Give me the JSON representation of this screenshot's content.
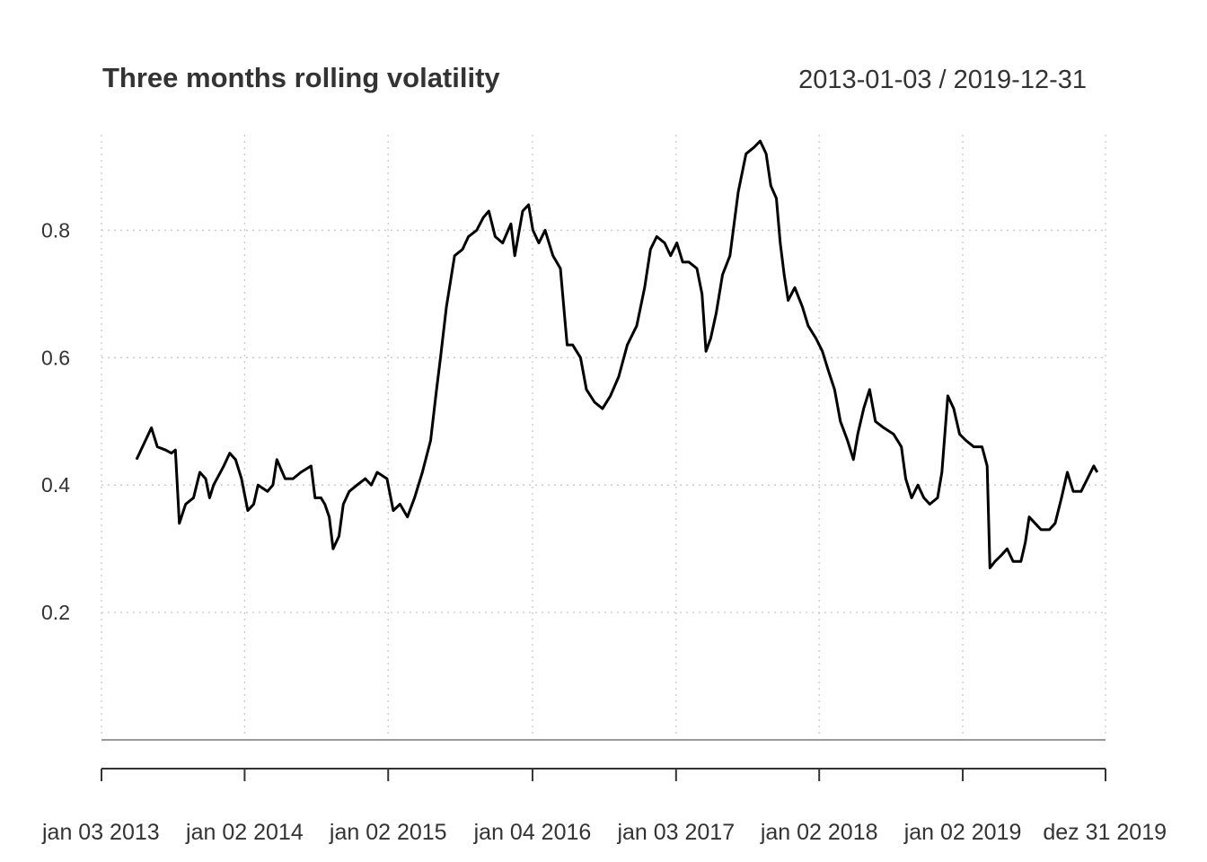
{
  "chart_data": {
    "type": "line",
    "title": "Three months rolling volatility",
    "date_range": "2013-01-03 / 2019-12-31",
    "x_range": [
      "2013-01-03",
      "2019-12-31"
    ],
    "ylim": [
      0,
      0.95
    ],
    "y_ticks": [
      "0.2",
      "0.4",
      "0.6",
      "0.8"
    ],
    "x_tick_labels": [
      "jan 03 2013",
      "jan 02 2014",
      "jan 02 2015",
      "jan 04 2016",
      "jan 03 2017",
      "jan 02 2018",
      "jan 02 2019",
      "dez 31 2019"
    ],
    "x_tick_dates": [
      "2013-01-03",
      "2014-01-02",
      "2015-01-02",
      "2016-01-04",
      "2017-01-03",
      "2018-01-02",
      "2019-01-02",
      "2019-12-31"
    ],
    "grid": true,
    "series": [
      {
        "values": [
          [
            "2013-04-02",
            0.44
          ],
          [
            "2013-04-25",
            0.47
          ],
          [
            "2013-05-10",
            0.49
          ],
          [
            "2013-05-25",
            0.46
          ],
          [
            "2013-06-15",
            0.455
          ],
          [
            "2013-06-30",
            0.45
          ],
          [
            "2013-07-10",
            0.455
          ],
          [
            "2013-07-20",
            0.34
          ],
          [
            "2013-08-05",
            0.37
          ],
          [
            "2013-08-25",
            0.38
          ],
          [
            "2013-09-10",
            0.42
          ],
          [
            "2013-09-25",
            0.41
          ],
          [
            "2013-10-05",
            0.38
          ],
          [
            "2013-10-15",
            0.4
          ],
          [
            "2013-11-10",
            0.43
          ],
          [
            "2013-11-25",
            0.45
          ],
          [
            "2013-12-10",
            0.44
          ],
          [
            "2013-12-25",
            0.41
          ],
          [
            "2014-01-10",
            0.36
          ],
          [
            "2014-01-25",
            0.37
          ],
          [
            "2014-02-05",
            0.4
          ],
          [
            "2014-03-01",
            0.39
          ],
          [
            "2014-03-15",
            0.4
          ],
          [
            "2014-03-25",
            0.44
          ],
          [
            "2014-04-15",
            0.41
          ],
          [
            "2014-05-05",
            0.41
          ],
          [
            "2014-05-25",
            0.42
          ],
          [
            "2014-06-20",
            0.43
          ],
          [
            "2014-06-30",
            0.38
          ],
          [
            "2014-07-15",
            0.38
          ],
          [
            "2014-07-25",
            0.37
          ],
          [
            "2014-08-05",
            0.35
          ],
          [
            "2014-08-15",
            0.3
          ],
          [
            "2014-08-30",
            0.32
          ],
          [
            "2014-09-10",
            0.37
          ],
          [
            "2014-09-25",
            0.39
          ],
          [
            "2014-10-15",
            0.4
          ],
          [
            "2014-11-05",
            0.41
          ],
          [
            "2014-11-20",
            0.4
          ],
          [
            "2014-12-05",
            0.42
          ],
          [
            "2014-12-30",
            0.41
          ],
          [
            "2015-01-15",
            0.36
          ],
          [
            "2015-02-01",
            0.37
          ],
          [
            "2015-02-20",
            0.35
          ],
          [
            "2015-03-10",
            0.38
          ],
          [
            "2015-03-30",
            0.42
          ],
          [
            "2015-04-20",
            0.47
          ],
          [
            "2015-05-05",
            0.55
          ],
          [
            "2015-05-15",
            0.6
          ],
          [
            "2015-05-30",
            0.68
          ],
          [
            "2015-06-20",
            0.76
          ],
          [
            "2015-07-10",
            0.77
          ],
          [
            "2015-07-25",
            0.79
          ],
          [
            "2015-08-15",
            0.8
          ],
          [
            "2015-09-01",
            0.82
          ],
          [
            "2015-09-15",
            0.83
          ],
          [
            "2015-10-01",
            0.79
          ],
          [
            "2015-10-20",
            0.78
          ],
          [
            "2015-11-10",
            0.81
          ],
          [
            "2015-11-20",
            0.76
          ],
          [
            "2015-12-10",
            0.83
          ],
          [
            "2015-12-25",
            0.84
          ],
          [
            "2016-01-05",
            0.8
          ],
          [
            "2016-01-20",
            0.78
          ],
          [
            "2016-02-05",
            0.8
          ],
          [
            "2016-02-25",
            0.76
          ],
          [
            "2016-03-15",
            0.74
          ],
          [
            "2016-04-01",
            0.62
          ],
          [
            "2016-04-15",
            0.62
          ],
          [
            "2016-05-05",
            0.6
          ],
          [
            "2016-05-20",
            0.55
          ],
          [
            "2016-06-10",
            0.53
          ],
          [
            "2016-06-30",
            0.52
          ],
          [
            "2016-07-20",
            0.54
          ],
          [
            "2016-08-10",
            0.57
          ],
          [
            "2016-09-01",
            0.62
          ],
          [
            "2016-09-25",
            0.65
          ],
          [
            "2016-10-15",
            0.71
          ],
          [
            "2016-10-30",
            0.77
          ],
          [
            "2016-11-15",
            0.79
          ],
          [
            "2016-12-05",
            0.78
          ],
          [
            "2016-12-20",
            0.76
          ],
          [
            "2017-01-05",
            0.78
          ],
          [
            "2017-01-20",
            0.75
          ],
          [
            "2017-02-05",
            0.75
          ],
          [
            "2017-02-25",
            0.74
          ],
          [
            "2017-03-10",
            0.7
          ],
          [
            "2017-03-20",
            0.61
          ],
          [
            "2017-04-01",
            0.63
          ],
          [
            "2017-04-15",
            0.67
          ],
          [
            "2017-05-01",
            0.73
          ],
          [
            "2017-05-20",
            0.76
          ],
          [
            "2017-06-10",
            0.86
          ],
          [
            "2017-06-30",
            0.92
          ],
          [
            "2017-07-20",
            0.93
          ],
          [
            "2017-08-05",
            0.94
          ],
          [
            "2017-08-20",
            0.92
          ],
          [
            "2017-09-01",
            0.87
          ],
          [
            "2017-09-15",
            0.85
          ],
          [
            "2017-09-25",
            0.78
          ],
          [
            "2017-10-05",
            0.73
          ],
          [
            "2017-10-15",
            0.69
          ],
          [
            "2017-11-01",
            0.71
          ],
          [
            "2017-11-20",
            0.68
          ],
          [
            "2017-12-05",
            0.65
          ],
          [
            "2017-12-25",
            0.63
          ],
          [
            "2018-01-10",
            0.61
          ],
          [
            "2018-01-25",
            0.58
          ],
          [
            "2018-02-10",
            0.55
          ],
          [
            "2018-02-25",
            0.5
          ],
          [
            "2018-03-15",
            0.47
          ],
          [
            "2018-03-30",
            0.44
          ],
          [
            "2018-04-10",
            0.48
          ],
          [
            "2018-04-25",
            0.52
          ],
          [
            "2018-05-10",
            0.55
          ],
          [
            "2018-05-25",
            0.5
          ],
          [
            "2018-06-15",
            0.49
          ],
          [
            "2018-07-10",
            0.48
          ],
          [
            "2018-07-30",
            0.46
          ],
          [
            "2018-08-10",
            0.41
          ],
          [
            "2018-08-25",
            0.38
          ],
          [
            "2018-09-10",
            0.4
          ],
          [
            "2018-09-25",
            0.38
          ],
          [
            "2018-10-10",
            0.37
          ],
          [
            "2018-10-30",
            0.38
          ],
          [
            "2018-11-10",
            0.42
          ],
          [
            "2018-11-25",
            0.54
          ],
          [
            "2018-12-10",
            0.52
          ],
          [
            "2018-12-25",
            0.48
          ],
          [
            "2019-01-10",
            0.47
          ],
          [
            "2019-01-30",
            0.46
          ],
          [
            "2019-02-20",
            0.46
          ],
          [
            "2019-03-05",
            0.43
          ],
          [
            "2019-03-12",
            0.27
          ],
          [
            "2019-03-25",
            0.28
          ],
          [
            "2019-04-10",
            0.29
          ],
          [
            "2019-04-25",
            0.3
          ],
          [
            "2019-05-10",
            0.28
          ],
          [
            "2019-05-30",
            0.28
          ],
          [
            "2019-06-10",
            0.31
          ],
          [
            "2019-06-20",
            0.35
          ],
          [
            "2019-07-05",
            0.34
          ],
          [
            "2019-07-20",
            0.33
          ],
          [
            "2019-08-10",
            0.33
          ],
          [
            "2019-08-25",
            0.34
          ],
          [
            "2019-09-10",
            0.38
          ],
          [
            "2019-09-25",
            0.42
          ],
          [
            "2019-10-10",
            0.39
          ],
          [
            "2019-10-30",
            0.39
          ],
          [
            "2019-11-15",
            0.41
          ],
          [
            "2019-12-01",
            0.43
          ],
          [
            "2019-12-10",
            0.42
          ]
        ]
      }
    ]
  }
}
